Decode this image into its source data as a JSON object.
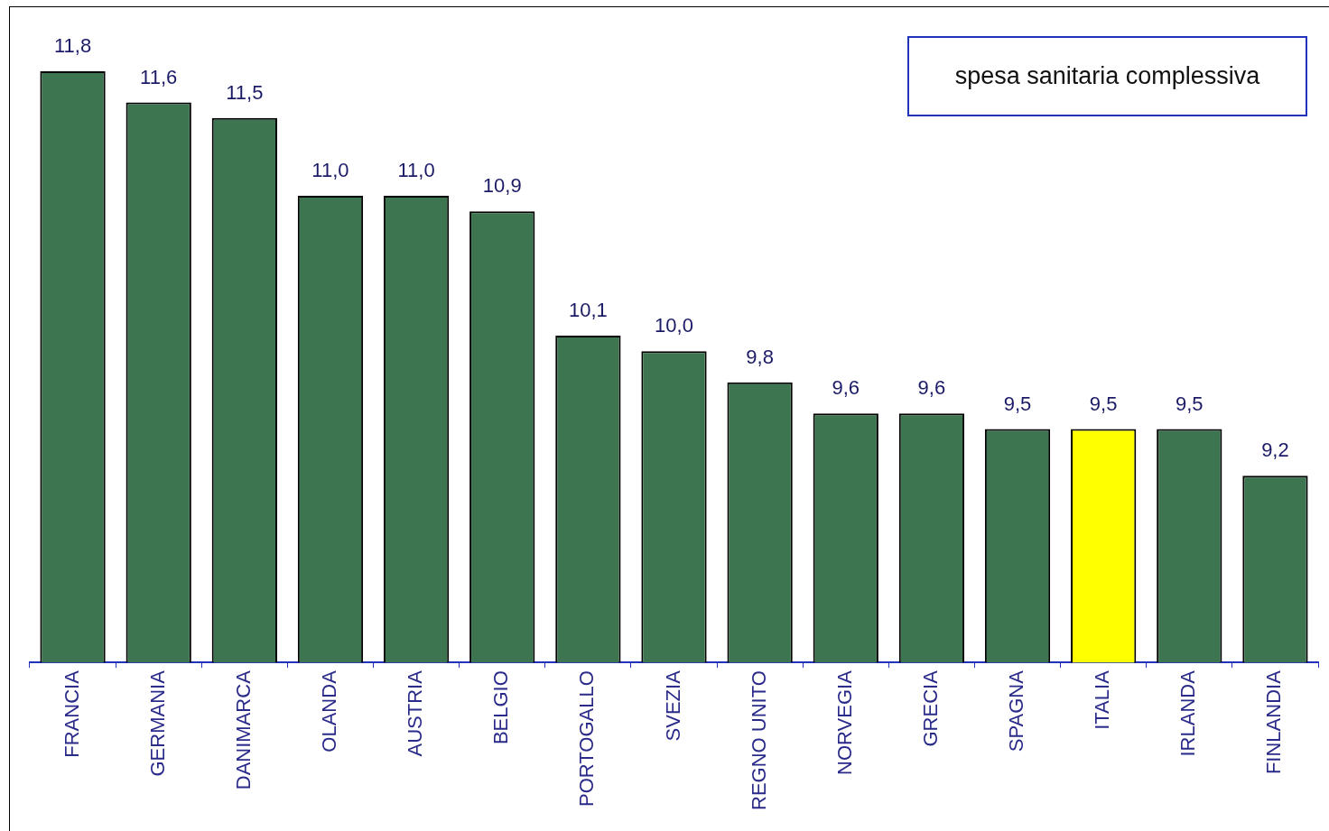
{
  "chart_data": {
    "type": "bar",
    "title": "spesa sanitaria complessiva",
    "categories": [
      "FRANCIA",
      "GERMANIA",
      "DANIMARCA",
      "OLANDA",
      "AUSTRIA",
      "BELGIO",
      "PORTOGALLO",
      "SVEZIA",
      "REGNO UNITO",
      "NORVEGIA",
      "GRECIA",
      "SPAGNA",
      "ITALIA",
      "IRLANDA",
      "FINLANDIA"
    ],
    "values": [
      11.8,
      11.6,
      11.5,
      11.0,
      11.0,
      10.9,
      10.1,
      10.0,
      9.8,
      9.6,
      9.6,
      9.5,
      9.5,
      9.5,
      9.2
    ],
    "value_labels": [
      "11,8",
      "11,6",
      "11,5",
      "11,0",
      "11,0",
      "10,9",
      "10,1",
      "10,0",
      "9,8",
      "9,6",
      "9,6",
      "9,5",
      "9,5",
      "9,5",
      "9,2"
    ],
    "colors": [
      "#3d7550",
      "#3d7550",
      "#3d7550",
      "#3d7550",
      "#3d7550",
      "#3d7550",
      "#3d7550",
      "#3d7550",
      "#3d7550",
      "#3d7550",
      "#3d7550",
      "#3d7550",
      "#ffff00",
      "#3d7550",
      "#3d7550"
    ],
    "ylim": [
      8,
      12.2
    ],
    "grid": false,
    "legend": false
  }
}
